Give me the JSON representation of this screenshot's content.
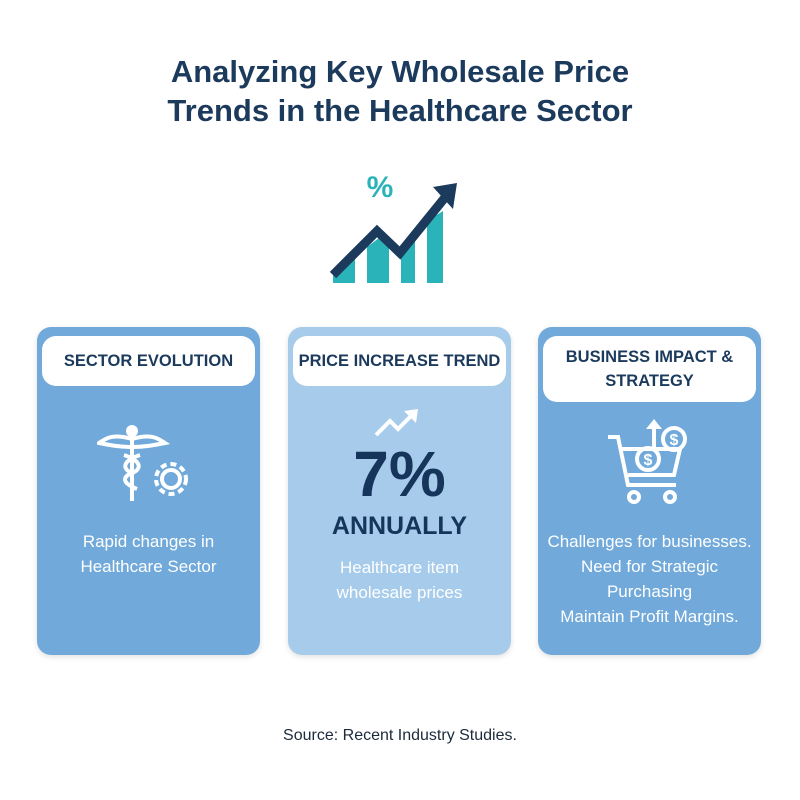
{
  "title": [
    "Analyzing Key Wholesale Price",
    "Trends in the Healthcare Sector"
  ],
  "icon_symbol": "%",
  "icon_currency": "$",
  "cards": [
    {
      "heading": [
        "SECTOR EVOLUTION"
      ],
      "lines": [
        "Rapid changes in",
        "Healthcare Sector"
      ]
    },
    {
      "heading": [
        "PRICE INCREASE TREND"
      ],
      "stat": "7%",
      "stat_label": "ANNUALLY",
      "lines": [
        "Healthcare item",
        "wholesale prices"
      ]
    },
    {
      "heading": [
        "BUSINESS IMPACT &",
        "STRATEGY"
      ],
      "lines": [
        "Challenges for businesses.",
        "Need for Strategic Purchasing",
        "Maintain Profit Margins."
      ]
    }
  ],
  "source": "Source: Recent Industry Studies."
}
